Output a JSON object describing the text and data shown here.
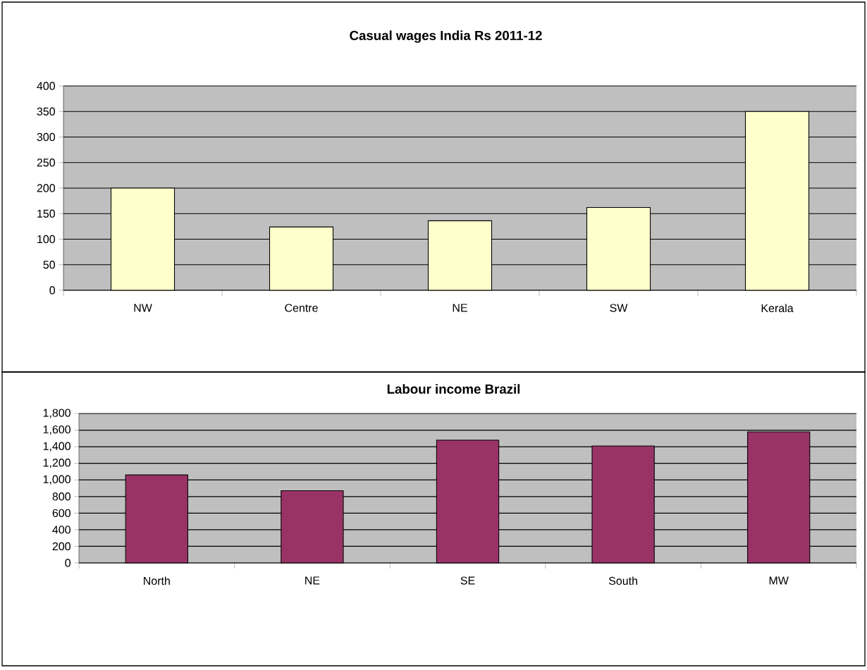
{
  "chart_data": [
    {
      "type": "bar",
      "title": "Casual wages India Rs 2011-12",
      "categories": [
        "NW",
        "Centre",
        "NE",
        "SW",
        "Kerala"
      ],
      "values": [
        200,
        124,
        136,
        162,
        350
      ],
      "color": "#ffffcc",
      "ylim": [
        0,
        400
      ],
      "yticks": [
        0,
        50,
        100,
        150,
        200,
        250,
        300,
        350,
        400
      ],
      "grid": "y"
    },
    {
      "type": "bar",
      "title": "Labour income  Brazil",
      "categories": [
        "North",
        "NE",
        "SE",
        "South",
        "MW"
      ],
      "values": [
        1060,
        870,
        1480,
        1410,
        1580
      ],
      "color": "#993366",
      "ylim": [
        0,
        1800
      ],
      "yticks": [
        {
          "value": 0,
          "label": "0"
        },
        {
          "value": 200,
          "label": "200"
        },
        {
          "value": 400,
          "label": "400"
        },
        {
          "value": 600,
          "label": "600"
        },
        {
          "value": 800,
          "label": "800"
        },
        {
          "value": 1000,
          "label": "1,000"
        },
        {
          "value": 1200,
          "label": "1,200"
        },
        {
          "value": 1400,
          "label": "1,400"
        },
        {
          "value": 1600,
          "label": "1,600"
        },
        {
          "value": 1800,
          "label": "1,800"
        }
      ],
      "grid": "y"
    }
  ]
}
